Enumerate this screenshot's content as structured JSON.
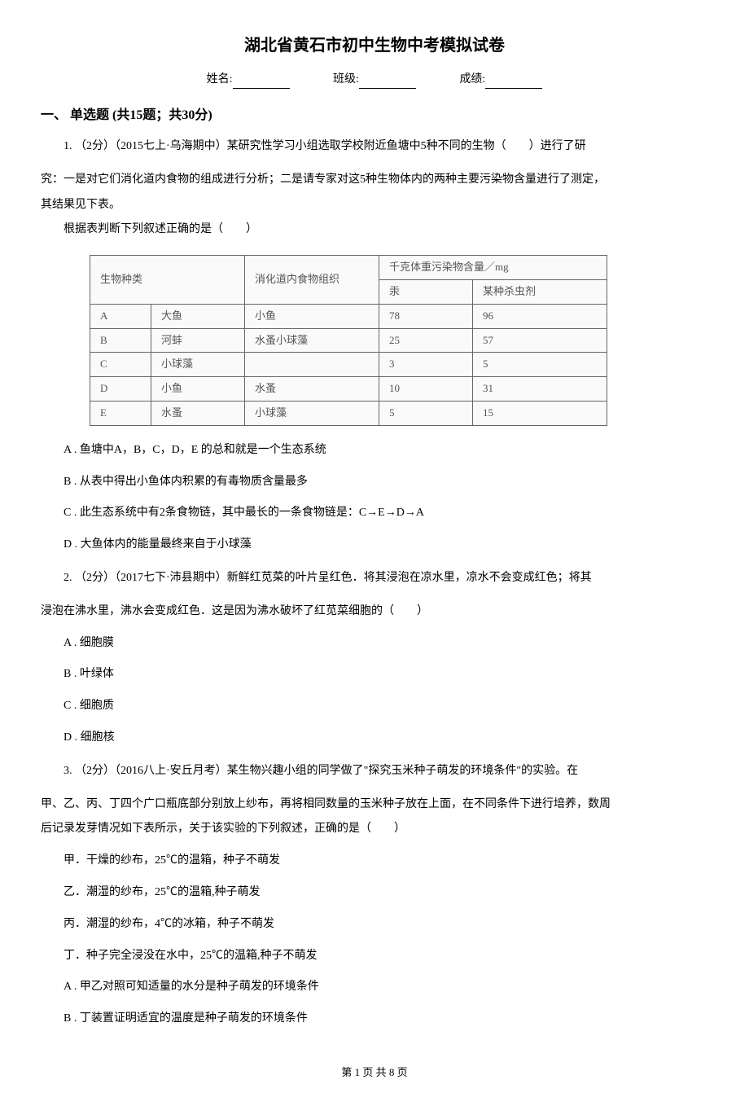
{
  "title": "湖北省黄石市初中生物中考模拟试卷",
  "info": {
    "name_label": "姓名:",
    "class_label": "班级:",
    "score_label": "成绩:"
  },
  "section1": {
    "header": "一、 单选题 (共15题；共30分)"
  },
  "q1": {
    "stem_line1": "1. （2分）（2015七上·乌海期中）某研究性学习小组选取学校附近鱼塘中5种不同的生物（　　）进行了研",
    "stem_line2": "究：一是对它们消化道内食物的组成进行分析；二是请专家对这5种生物体内的两种主要污染物含量进行了测定，",
    "stem_line3": "其结果见下表。",
    "prompt": "根据表判断下列叙述正确的是（　　）",
    "table": {
      "header_bio": "生物种类",
      "header_food": "消化道内食物组织",
      "header_pollutant": "千克体重污染物含量／mg",
      "header_hg": "汞",
      "header_pesticide": "某种杀虫剂",
      "rows": [
        {
          "id": "A",
          "bio": "大鱼",
          "food": "小鱼",
          "hg": "78",
          "pest": "96"
        },
        {
          "id": "B",
          "bio": "河蚌",
          "food": "水蚤小球藻",
          "hg": "25",
          "pest": "57"
        },
        {
          "id": "C",
          "bio": "小球藻",
          "food": "",
          "hg": "3",
          "pest": "5"
        },
        {
          "id": "D",
          "bio": "小鱼",
          "food": "水蚤",
          "hg": "10",
          "pest": "31"
        },
        {
          "id": "E",
          "bio": "水蚤",
          "food": "小球藻",
          "hg": "5",
          "pest": "15"
        }
      ]
    },
    "optA": "A . 鱼塘中A，B，C，D，E 的总和就是一个生态系统",
    "optB": "B . 从表中得出小鱼体内积累的有毒物质含量最多",
    "optC": "C . 此生态系统中有2条食物链，其中最长的一条食物链是：C→E→D→A",
    "optD": "D . 大鱼体内的能量最终来自于小球藻"
  },
  "q2": {
    "stem_line1": "2. （2分）（2017七下·沛县期中）新鲜红苋菜的叶片呈红色．将其浸泡在凉水里，凉水不会变成红色；将其",
    "stem_line2": "浸泡在沸水里，沸水会变成红色．这是因为沸水破坏了红苋菜细胞的（　　）",
    "optA": "A . 细胞膜",
    "optB": "B . 叶绿体",
    "optC": "C . 细胞质",
    "optD": "D . 细胞核"
  },
  "q3": {
    "stem_line1": "3. （2分）（2016八上·安丘月考）某生物兴趣小组的同学做了\"探究玉米种子萌发的环境条件\"的实验。在",
    "stem_line2": "甲、乙、丙、丁四个广口瓶底部分别放上纱布，再将相同数量的玉米种子放在上面，在不同条件下进行培养，数周",
    "stem_line3": "后记录发芽情况如下表所示，关于该实验的下列叙述，正确的是（　　）",
    "cond1": "甲．干燥的纱布，25℃的温箱，种子不萌发",
    "cond2": "乙．潮湿的纱布，25℃的温箱,种子萌发",
    "cond3": "丙．潮湿的纱布，4℃的冰箱，种子不萌发",
    "cond4": "丁．种子完全浸没在水中，25℃的温箱,种子不萌发",
    "optA": "A . 甲乙对照可知适量的水分是种子萌发的环境条件",
    "optB": "B . 丁装置证明适宜的温度是种子萌发的环境条件"
  },
  "footer": "第 1 页 共 8 页"
}
